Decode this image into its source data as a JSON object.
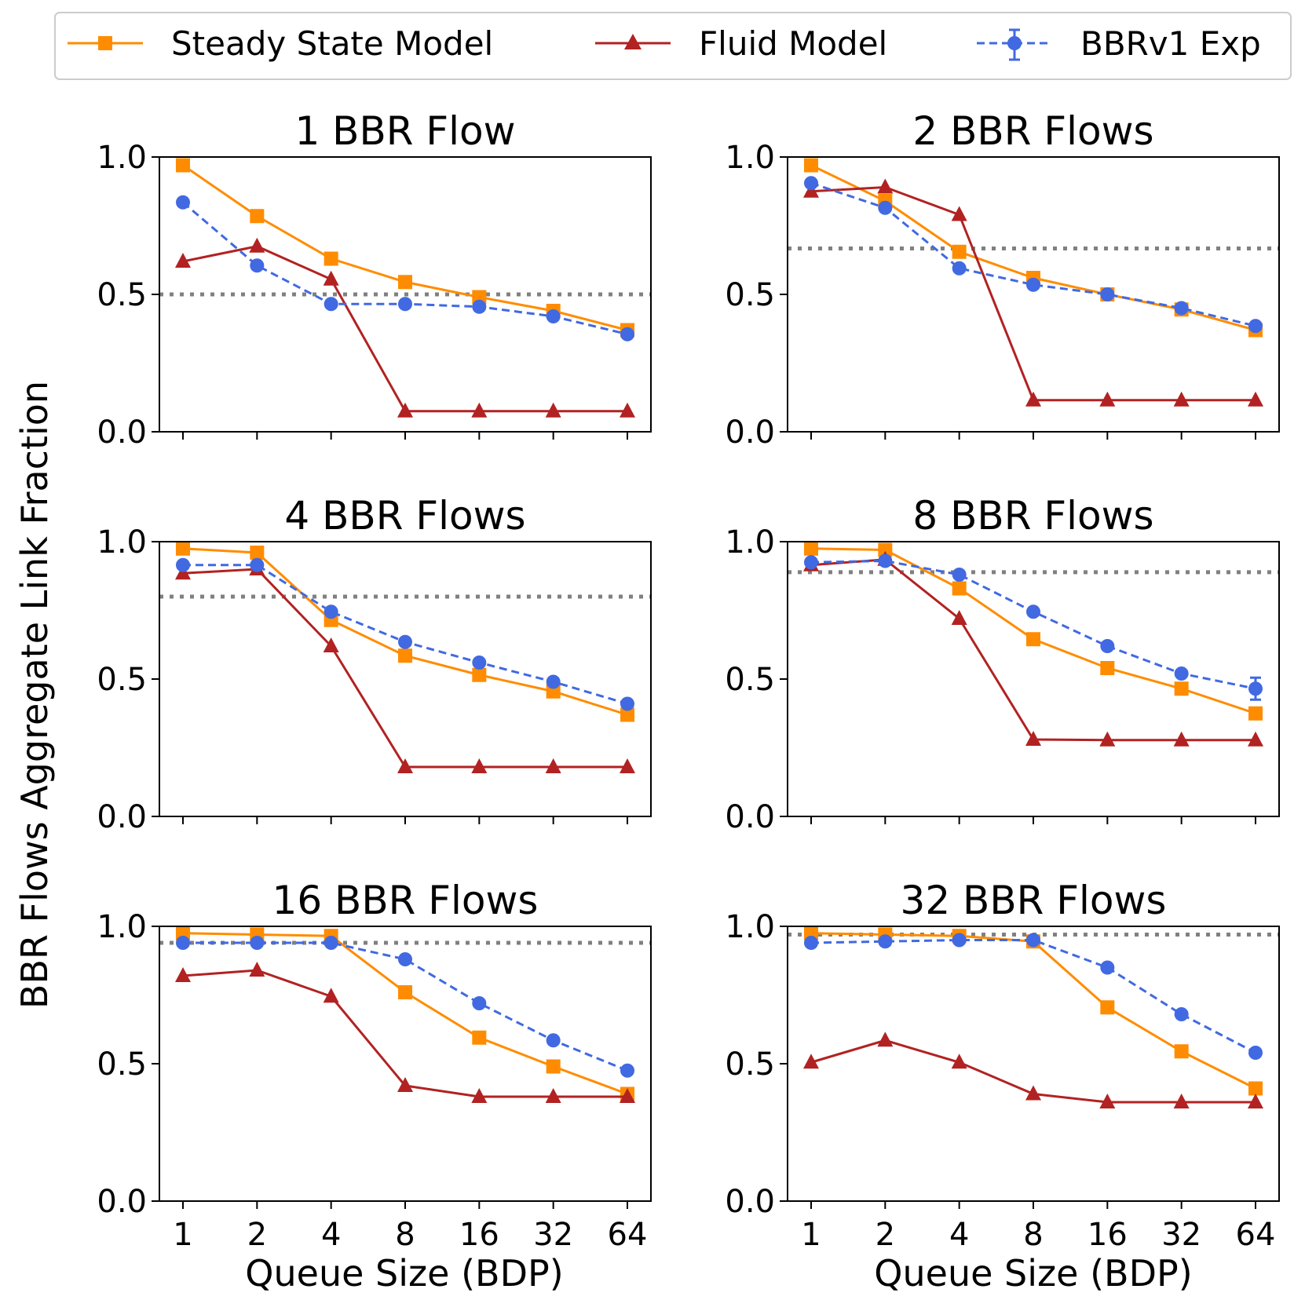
{
  "figure": {
    "ylabel": "BBR Flows Aggregate Link Fraction",
    "xlabel": "Queue Size (BDP)"
  },
  "legend": {
    "placement": "top",
    "entries": [
      {
        "key": "steady",
        "label": "Steady State Model",
        "color": "#ff8c00",
        "marker": "square",
        "linestyle": "solid"
      },
      {
        "key": "fluid",
        "label": "Fluid Model",
        "color": "#b22222",
        "marker": "triangle",
        "linestyle": "solid"
      },
      {
        "key": "exp",
        "label": "BBRv1 Exp",
        "color": "#4169e1",
        "marker": "circle",
        "linestyle": "dashed",
        "errorbars": true
      }
    ]
  },
  "reference_line_color": "#808080",
  "chart_data": [
    {
      "type": "line",
      "title": "1 BBR Flow",
      "categories": [
        "1",
        "2",
        "4",
        "8",
        "16",
        "32",
        "64"
      ],
      "yticks": [
        "0.0",
        "0.5",
        "1.0"
      ],
      "ylim": [
        0,
        1
      ],
      "reference_line": 0.5,
      "series": [
        {
          "name": "Steady State Model",
          "values": [
            0.97,
            0.785,
            0.63,
            0.545,
            0.49,
            0.44,
            0.37
          ]
        },
        {
          "name": "Fluid Model",
          "values": [
            0.62,
            0.675,
            0.555,
            0.075,
            0.075,
            0.075,
            0.075
          ]
        },
        {
          "name": "BBRv1 Exp",
          "values": [
            0.835,
            0.605,
            0.465,
            0.465,
            0.455,
            0.42,
            0.355
          ]
        }
      ]
    },
    {
      "type": "line",
      "title": "2 BBR Flows",
      "categories": [
        "1",
        "2",
        "4",
        "8",
        "16",
        "32",
        "64"
      ],
      "yticks": [
        "0.0",
        "0.5",
        "1.0"
      ],
      "ylim": [
        0,
        1
      ],
      "reference_line": 0.667,
      "series": [
        {
          "name": "Steady State Model",
          "values": [
            0.97,
            0.84,
            0.655,
            0.56,
            0.5,
            0.445,
            0.37
          ]
        },
        {
          "name": "Fluid Model",
          "values": [
            0.875,
            0.89,
            0.79,
            0.115,
            0.115,
            0.115,
            0.115
          ]
        },
        {
          "name": "BBRv1 Exp",
          "values": [
            0.905,
            0.815,
            0.595,
            0.535,
            0.5,
            0.45,
            0.385
          ]
        }
      ]
    },
    {
      "type": "line",
      "title": "4 BBR Flows",
      "categories": [
        "1",
        "2",
        "4",
        "8",
        "16",
        "32",
        "64"
      ],
      "yticks": [
        "0.0",
        "0.5",
        "1.0"
      ],
      "ylim": [
        0,
        1
      ],
      "reference_line": 0.8,
      "series": [
        {
          "name": "Steady State Model",
          "values": [
            0.975,
            0.96,
            0.715,
            0.585,
            0.515,
            0.455,
            0.37
          ]
        },
        {
          "name": "Fluid Model",
          "values": [
            0.885,
            0.9,
            0.62,
            0.18,
            0.18,
            0.18,
            0.18
          ]
        },
        {
          "name": "BBRv1 Exp",
          "values": [
            0.915,
            0.915,
            0.745,
            0.635,
            0.56,
            0.49,
            0.41
          ]
        }
      ]
    },
    {
      "type": "line",
      "title": "8 BBR Flows",
      "categories": [
        "1",
        "2",
        "4",
        "8",
        "16",
        "32",
        "64"
      ],
      "yticks": [
        "0.0",
        "0.5",
        "1.0"
      ],
      "ylim": [
        0,
        1
      ],
      "reference_line": 0.889,
      "series": [
        {
          "name": "Steady State Model",
          "values": [
            0.975,
            0.97,
            0.83,
            0.645,
            0.54,
            0.465,
            0.375
          ]
        },
        {
          "name": "Fluid Model",
          "values": [
            0.915,
            0.935,
            0.72,
            0.28,
            0.278,
            0.278,
            0.278
          ]
        },
        {
          "name": "BBRv1 Exp",
          "values": [
            0.925,
            0.93,
            0.88,
            0.745,
            0.62,
            0.52,
            0.465
          ]
        },
        {
          "name": "BBRv1 Exp error",
          "values": [
            0,
            0,
            0,
            0,
            0,
            0,
            0.04
          ]
        }
      ]
    },
    {
      "type": "line",
      "title": "16 BBR Flows",
      "categories": [
        "1",
        "2",
        "4",
        "8",
        "16",
        "32",
        "64"
      ],
      "yticks": [
        "0.0",
        "0.5",
        "1.0"
      ],
      "ylim": [
        0,
        1
      ],
      "reference_line": 0.94,
      "series": [
        {
          "name": "Steady State Model",
          "values": [
            0.975,
            0.97,
            0.965,
            0.76,
            0.595,
            0.49,
            0.39
          ]
        },
        {
          "name": "Fluid Model",
          "values": [
            0.82,
            0.84,
            0.745,
            0.42,
            0.38,
            0.38,
            0.38
          ]
        },
        {
          "name": "BBRv1 Exp",
          "values": [
            0.94,
            0.94,
            0.94,
            0.88,
            0.72,
            0.585,
            0.475
          ]
        }
      ]
    },
    {
      "type": "line",
      "title": "32 BBR Flows",
      "categories": [
        "1",
        "2",
        "4",
        "8",
        "16",
        "32",
        "64"
      ],
      "yticks": [
        "0.0",
        "0.5",
        "1.0"
      ],
      "ylim": [
        0,
        1
      ],
      "reference_line": 0.97,
      "series": [
        {
          "name": "Steady State Model",
          "values": [
            0.975,
            0.97,
            0.965,
            0.945,
            0.705,
            0.545,
            0.41
          ]
        },
        {
          "name": "Fluid Model",
          "values": [
            0.505,
            0.585,
            0.505,
            0.39,
            0.36,
            0.36,
            0.36
          ]
        },
        {
          "name": "BBRv1 Exp",
          "values": [
            0.94,
            0.945,
            0.95,
            0.95,
            0.85,
            0.68,
            0.54
          ]
        }
      ]
    }
  ]
}
